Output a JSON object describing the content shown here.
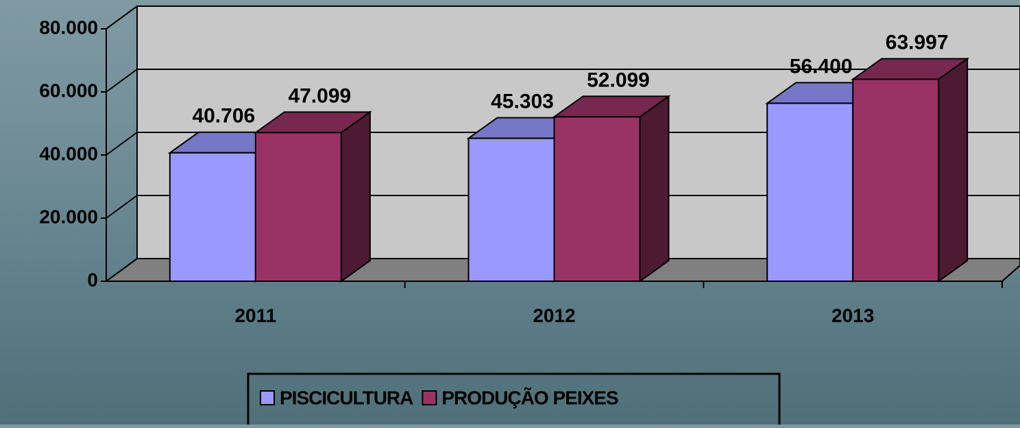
{
  "chart_data": {
    "type": "bar3d",
    "categories": [
      "2011",
      "2012",
      "2013"
    ],
    "series": [
      {
        "name": "PISCICULTURA",
        "color": "#9999ff",
        "values": [
          40706,
          45303,
          56400
        ],
        "value_labels": [
          "40.706",
          "45.303",
          "56.400"
        ]
      },
      {
        "name": "PRODUÇÃO PEIXES",
        "color": "#993366",
        "values": [
          47099,
          52099,
          63997
        ],
        "value_labels": [
          "47.099",
          "52.099",
          "63.997"
        ]
      }
    ],
    "ylim": [
      0,
      80000
    ],
    "yticks": [
      0,
      {
        "value": 20000,
        "label": "20.000"
      },
      {
        "value": 40000,
        "label": "40.000"
      },
      {
        "value": 60000,
        "label": "60.000"
      },
      {
        "value": 80000,
        "label": "80.000"
      }
    ],
    "grid": true,
    "legend": "bottom"
  }
}
